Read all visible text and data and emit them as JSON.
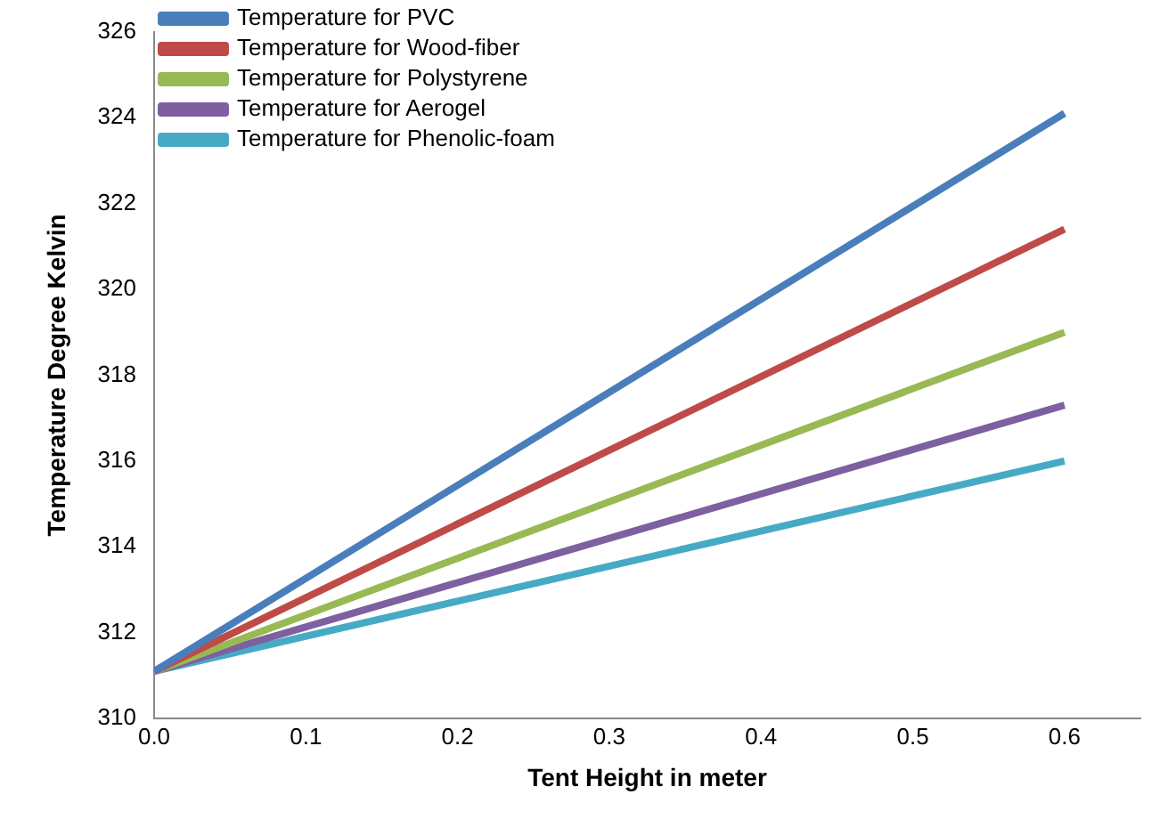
{
  "chart_data": {
    "type": "line",
    "xlabel": "Tent Height in meter",
    "ylabel": "Temperature Degree Kelvin",
    "x": [
      0,
      0.6
    ],
    "series": [
      {
        "name": "Temperature for PVC",
        "color": "#4a7ebb",
        "values": [
          311.1,
          324.1
        ]
      },
      {
        "name": "Temperature for Wood-fiber",
        "color": "#be4b48",
        "values": [
          311.1,
          321.4
        ]
      },
      {
        "name": "Temperature for Polystyrene",
        "color": "#98b954",
        "values": [
          311.1,
          319.0
        ]
      },
      {
        "name": "Temperature for Aerogel",
        "color": "#7d60a0",
        "values": [
          311.1,
          317.3
        ]
      },
      {
        "name": "Temperature for Phenolic-foam",
        "color": "#46aac5",
        "values": [
          311.1,
          316.0
        ]
      }
    ],
    "xlim": [
      0,
      0.65
    ],
    "xticks": [
      {
        "value": 0,
        "label": "0.0"
      },
      0.1,
      0.2,
      0.3,
      0.4,
      0.5,
      0.6
    ],
    "ylim": [
      310,
      326
    ],
    "yticks": [
      310,
      312,
      314,
      316,
      318,
      320,
      322,
      324,
      326
    ],
    "grid": false,
    "legend": "top left",
    "marker": "none",
    "line_style": "solid"
  }
}
